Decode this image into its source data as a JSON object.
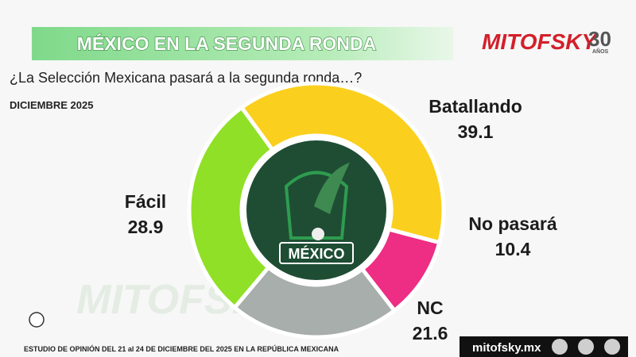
{
  "header": {
    "title": "MÉXICO EN LA SEGUNDA RONDA",
    "question": "¿La Selección Mexicana pasará a la segunda ronda…?",
    "date": "DICIEMBRE 2025",
    "logo": "MITOFSKY",
    "logo_years": "30",
    "logo_years_word": "AÑOS"
  },
  "chart_data": {
    "type": "donut",
    "categories": [
      "Batallando",
      "No pasará",
      "NC",
      "Fácil"
    ],
    "values": [
      39.1,
      10.4,
      21.6,
      28.9
    ],
    "colors": [
      "#fbcf1d",
      "#ee2d85",
      "#a7aeab",
      "#8fe026"
    ],
    "center_label": "MÉXICO"
  },
  "footer": {
    "note": "ESTUDIO DE OPINIÓN DEL 21 al 24 DE DICIEMBRE DEL 2025 EN LA REPÚBLICA MEXICANA",
    "site": "mitofsky.mx"
  }
}
